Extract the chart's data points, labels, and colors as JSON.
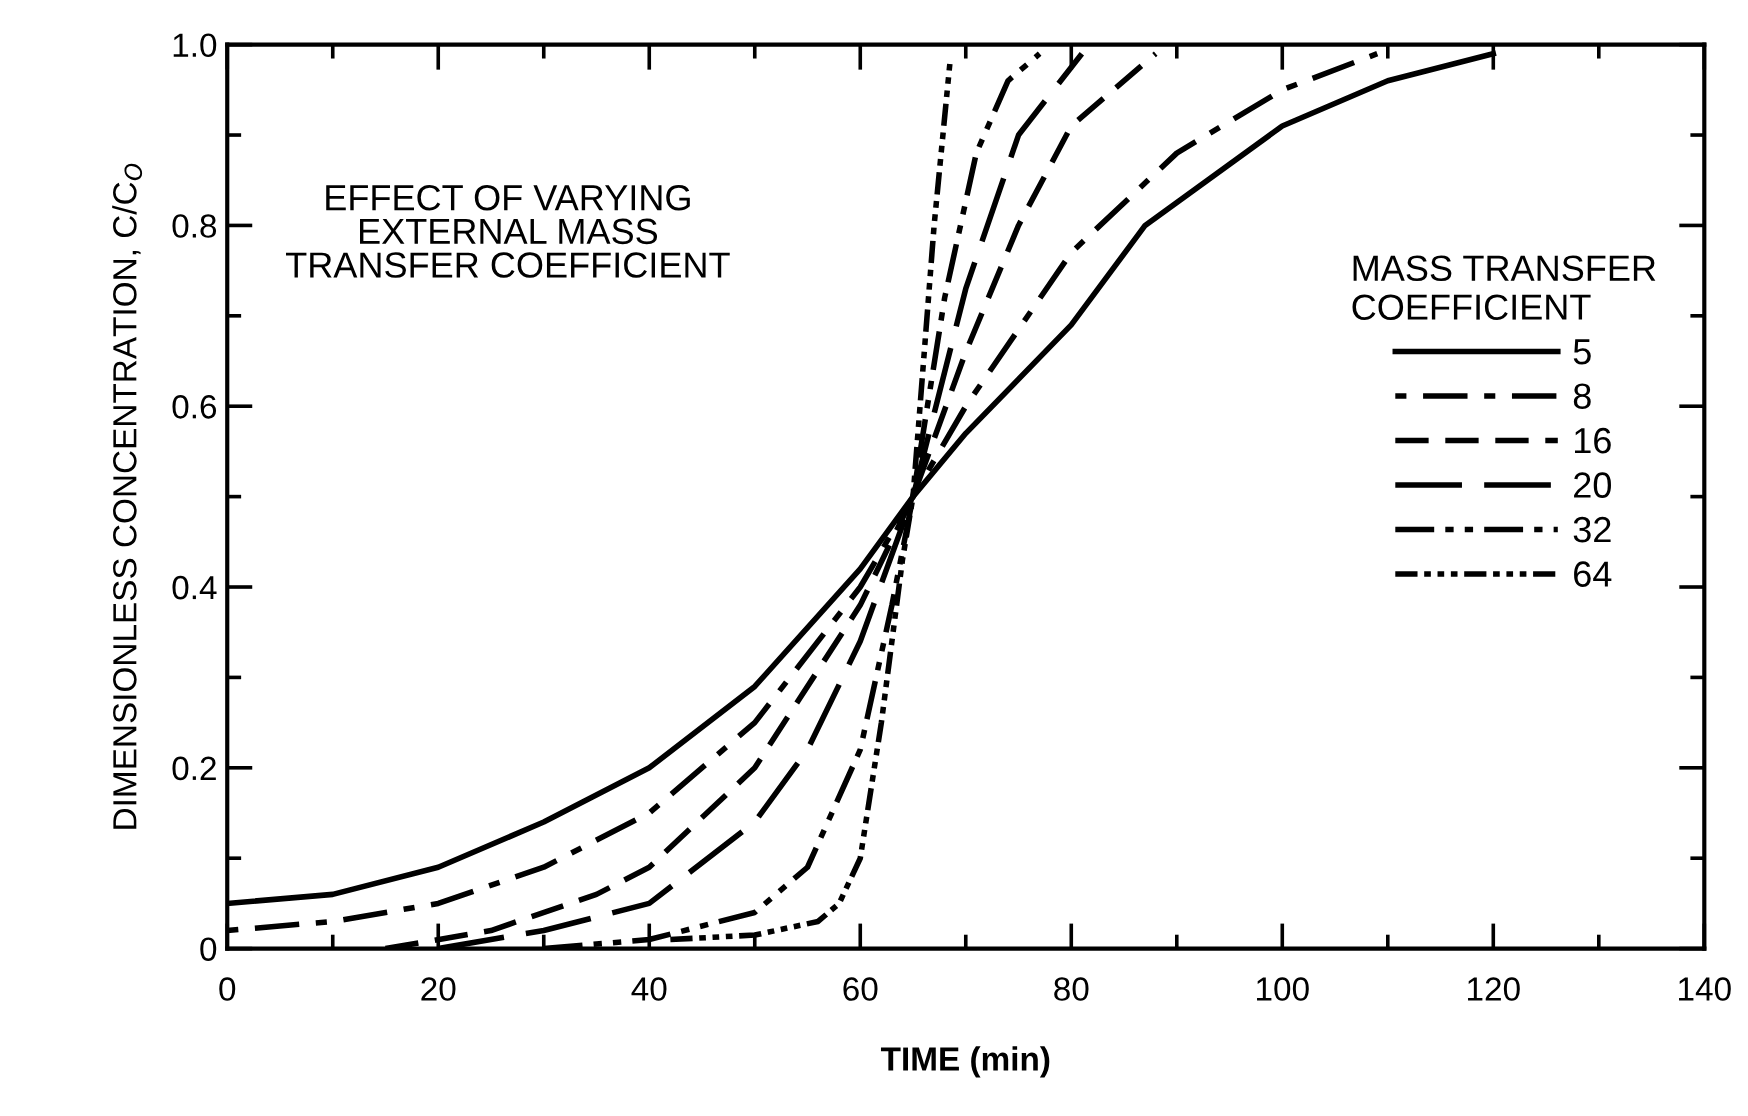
{
  "chart_data": {
    "type": "line",
    "xlabel": "TIME (min)",
    "ylabel": "DIMENSIONLESS CONCENTRATION, C/C$_{O}$",
    "legend_title": "MASS TRANSFER\nCOEFFICIENT",
    "legend": "right",
    "grid": false,
    "annotations": [
      "EFFECT OF VARYING\nEXTERNAL MASS\nTRANSFER COEFFICIENT"
    ],
    "xlim": [
      0,
      140
    ],
    "ylim": [
      0,
      1
    ],
    "xticks": [
      0,
      20,
      40,
      60,
      80,
      100,
      120,
      140
    ],
    "yticks": [
      0,
      0.2,
      0.4,
      0.6,
      0.8,
      {
        "value": 1,
        "label": "1.0"
      }
    ],
    "series": [
      {
        "name": "5",
        "color": "#000000",
        "line_style": "solid",
        "x": [
          0,
          10,
          20,
          30,
          40,
          50,
          60,
          65,
          70,
          80,
          87,
          100,
          110,
          120
        ],
        "values": [
          0.05,
          0.06,
          0.09,
          0.14,
          0.2,
          0.29,
          0.42,
          0.5,
          0.57,
          0.69,
          0.8,
          0.91,
          0.96,
          0.99
        ]
      },
      {
        "name": "8",
        "color": "#000000",
        "line_style": "dashdot",
        "x": [
          0,
          10,
          20,
          30,
          40,
          50,
          60,
          65,
          70,
          80,
          90,
          100,
          109
        ],
        "values": [
          0.02,
          0.03,
          0.05,
          0.09,
          0.15,
          0.25,
          0.4,
          0.5,
          0.6,
          0.77,
          0.88,
          0.95,
          0.99
        ]
      },
      {
        "name": "16",
        "color": "#000000",
        "line_style": "dashed",
        "x": [
          15,
          25,
          35,
          40,
          50,
          60,
          65,
          70,
          75,
          80,
          88
        ],
        "values": [
          0.0,
          0.02,
          0.06,
          0.09,
          0.2,
          0.38,
          0.5,
          0.66,
          0.8,
          0.91,
          0.99
        ]
      },
      {
        "name": "20",
        "color": "#000000",
        "line_style": "longdash",
        "x": [
          20,
          30,
          40,
          50,
          55,
          60,
          65,
          70,
          75,
          81
        ],
        "values": [
          0.0,
          0.02,
          0.05,
          0.14,
          0.22,
          0.34,
          0.5,
          0.73,
          0.9,
          0.99
        ]
      },
      {
        "name": "32",
        "color": "#000000",
        "line_style": "dashdotdot",
        "x": [
          30,
          40,
          50,
          55,
          60,
          63,
          65,
          68,
          71,
          74,
          77
        ],
        "values": [
          0.0,
          0.01,
          0.04,
          0.09,
          0.22,
          0.38,
          0.5,
          0.72,
          0.88,
          0.96,
          0.99
        ]
      },
      {
        "name": "64",
        "color": "#000000",
        "line_style": "dashdotdotdot",
        "x": [
          42,
          50,
          56,
          58,
          60,
          62,
          64,
          65,
          66,
          67,
          68.5
        ],
        "values": [
          0.01,
          0.015,
          0.03,
          0.05,
          0.1,
          0.25,
          0.43,
          0.5,
          0.65,
          0.8,
          0.98
        ]
      }
    ]
  }
}
